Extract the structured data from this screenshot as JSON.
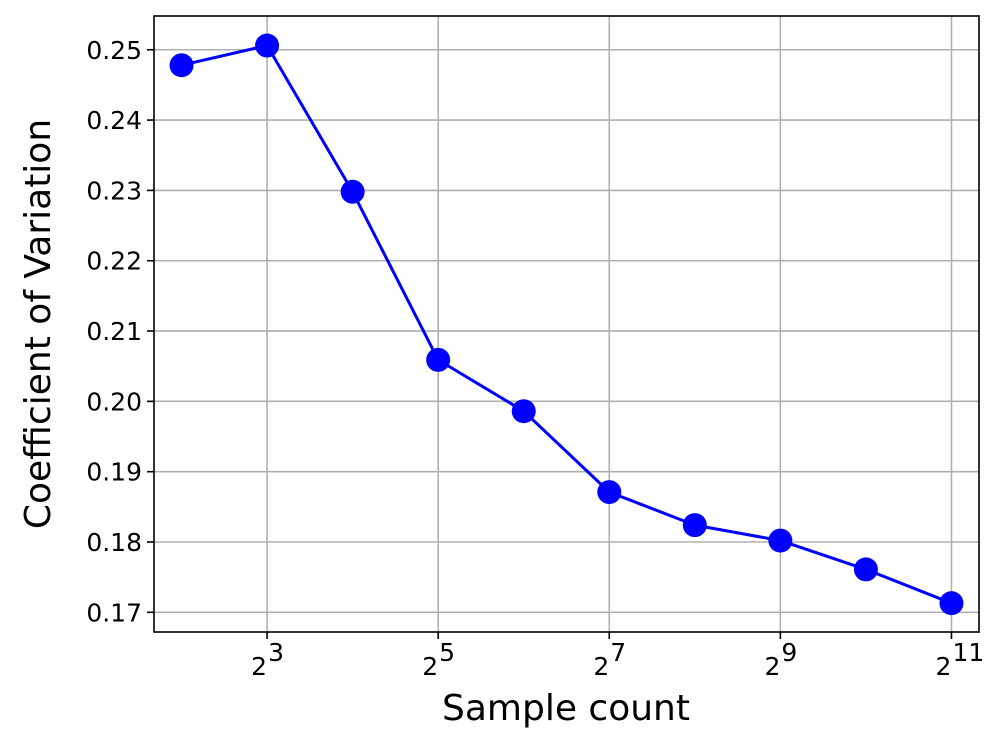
{
  "chart_data": {
    "type": "line",
    "xlabel": "Sample count",
    "ylabel": "Coefficient of Variation",
    "x_scale": "log2",
    "xlim": [
      3.2,
      2560
    ],
    "ylim": [
      0.1672,
      0.2548
    ],
    "grid": true,
    "x_ticks": [
      {
        "value": 8,
        "base": "2",
        "exp": "3"
      },
      {
        "value": 32,
        "base": "2",
        "exp": "5"
      },
      {
        "value": 128,
        "base": "2",
        "exp": "7"
      },
      {
        "value": 512,
        "base": "2",
        "exp": "9"
      },
      {
        "value": 2048,
        "base": "2",
        "exp": "11"
      }
    ],
    "y_ticks": [
      {
        "value": 0.17,
        "label": "0.17"
      },
      {
        "value": 0.18,
        "label": "0.18"
      },
      {
        "value": 0.19,
        "label": "0.19"
      },
      {
        "value": 0.2,
        "label": "0.20"
      },
      {
        "value": 0.21,
        "label": "0.21"
      },
      {
        "value": 0.22,
        "label": "0.22"
      },
      {
        "value": 0.23,
        "label": "0.23"
      },
      {
        "value": 0.24,
        "label": "0.24"
      },
      {
        "value": 0.25,
        "label": "0.25"
      }
    ],
    "series": [
      {
        "color": "#0000ff",
        "marker": "circle",
        "x": [
          4,
          8,
          16,
          32,
          64,
          128,
          256,
          512,
          1024,
          2048
        ],
        "y": [
          0.2478,
          0.2506,
          0.2298,
          0.2059,
          0.1986,
          0.1871,
          0.1824,
          0.1802,
          0.1761,
          0.1713
        ]
      }
    ]
  }
}
